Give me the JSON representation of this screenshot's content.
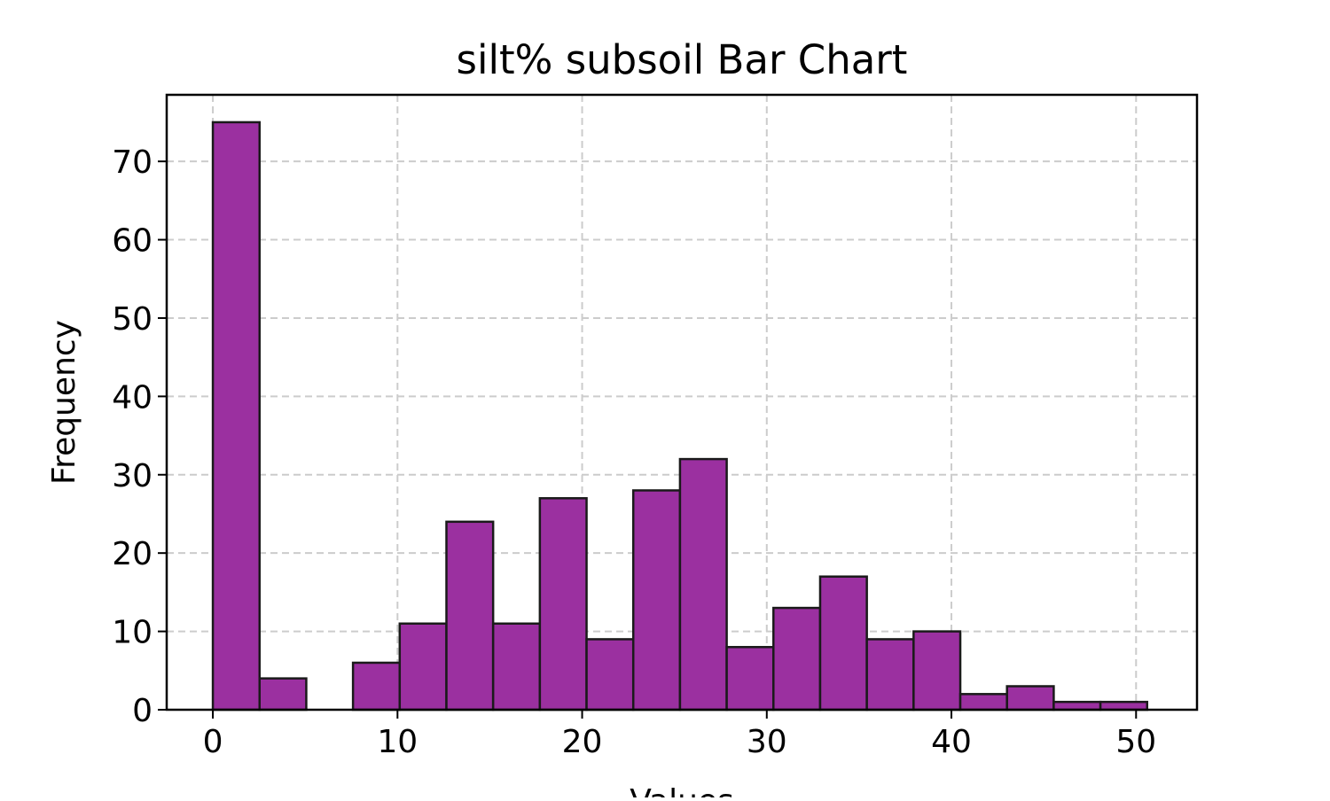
{
  "chart_data": {
    "type": "bar",
    "title": "silt% subsoil Bar Chart",
    "xlabel": "Values",
    "ylabel": "Frequency",
    "xlim": [
      -2.5,
      53.3
    ],
    "ylim": [
      0,
      78.5
    ],
    "grid": true,
    "bar_color": "#9b30a0",
    "edge_color": "#1a1a1a",
    "bin_edges": [
      0.0,
      2.53,
      5.06,
      7.59,
      10.12,
      12.65,
      15.18,
      17.71,
      20.24,
      22.77,
      25.3,
      27.83,
      30.36,
      32.89,
      35.42,
      37.95,
      40.48,
      43.01,
      45.54,
      48.07,
      50.6
    ],
    "values": [
      75,
      4,
      0,
      6,
      11,
      24,
      11,
      27,
      9,
      28,
      32,
      8,
      13,
      17,
      9,
      10,
      2,
      3,
      1,
      1
    ],
    "x_ticks": [
      0,
      10,
      20,
      30,
      40,
      50
    ],
    "y_ticks": [
      0,
      10,
      20,
      30,
      40,
      50,
      60,
      70
    ]
  }
}
